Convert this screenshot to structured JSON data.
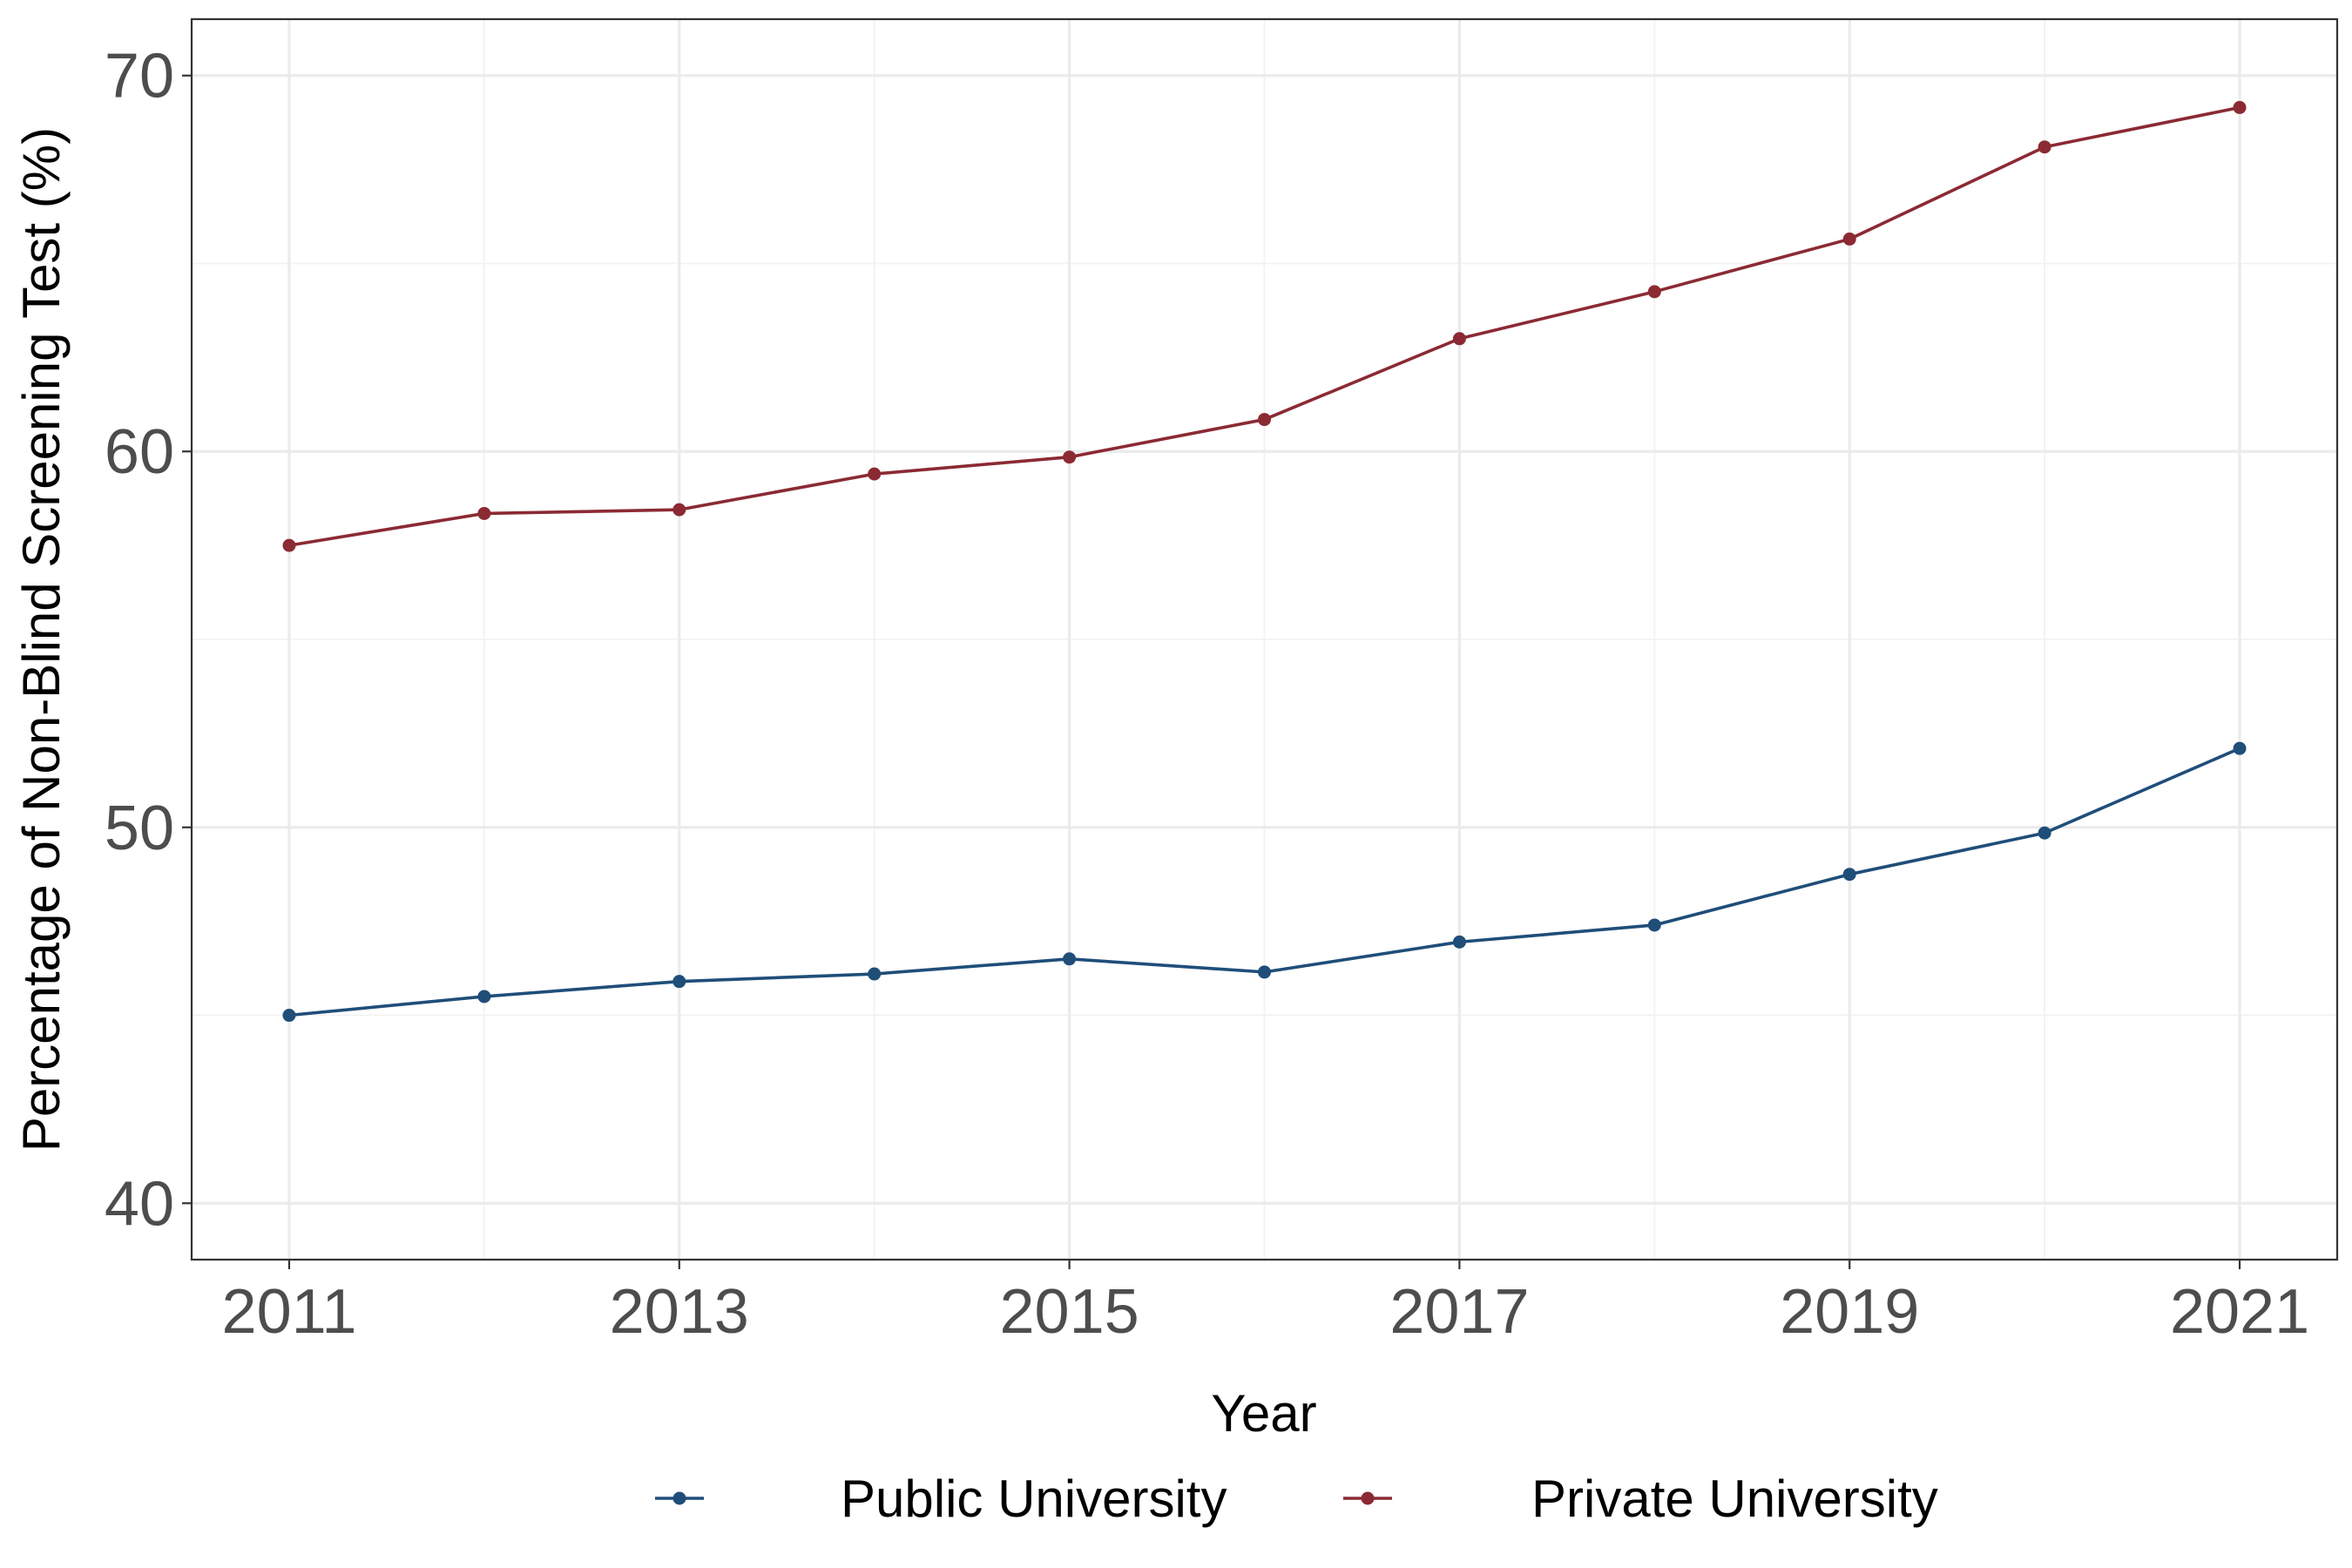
{
  "chart_data": {
    "type": "line",
    "title": "",
    "xlabel": "Year",
    "ylabel": "Percentage of Non-Blind Screening Test (%)",
    "x": [
      2011,
      2012,
      2013,
      2014,
      2015,
      2016,
      2017,
      2018,
      2019,
      2020,
      2021
    ],
    "xlim": [
      2010.5,
      2021.5
    ],
    "ylim": [
      38.5,
      71.5
    ],
    "x_ticks": [
      2011,
      2013,
      2015,
      2017,
      2019,
      2021
    ],
    "y_ticks": [
      40,
      50,
      60,
      70
    ],
    "grid": true,
    "legend_position": "bottom",
    "series": [
      {
        "name": "Public University",
        "color": "#1f4e79",
        "values": [
          45.0,
          45.5,
          45.9,
          46.1,
          46.5,
          46.15,
          46.95,
          47.4,
          48.75,
          49.85,
          52.1
        ]
      },
      {
        "name": "Private University",
        "color": "#8b2a33",
        "values": [
          57.5,
          58.35,
          58.45,
          59.4,
          59.85,
          60.85,
          63.0,
          64.25,
          65.65,
          68.1,
          69.15
        ]
      }
    ]
  }
}
